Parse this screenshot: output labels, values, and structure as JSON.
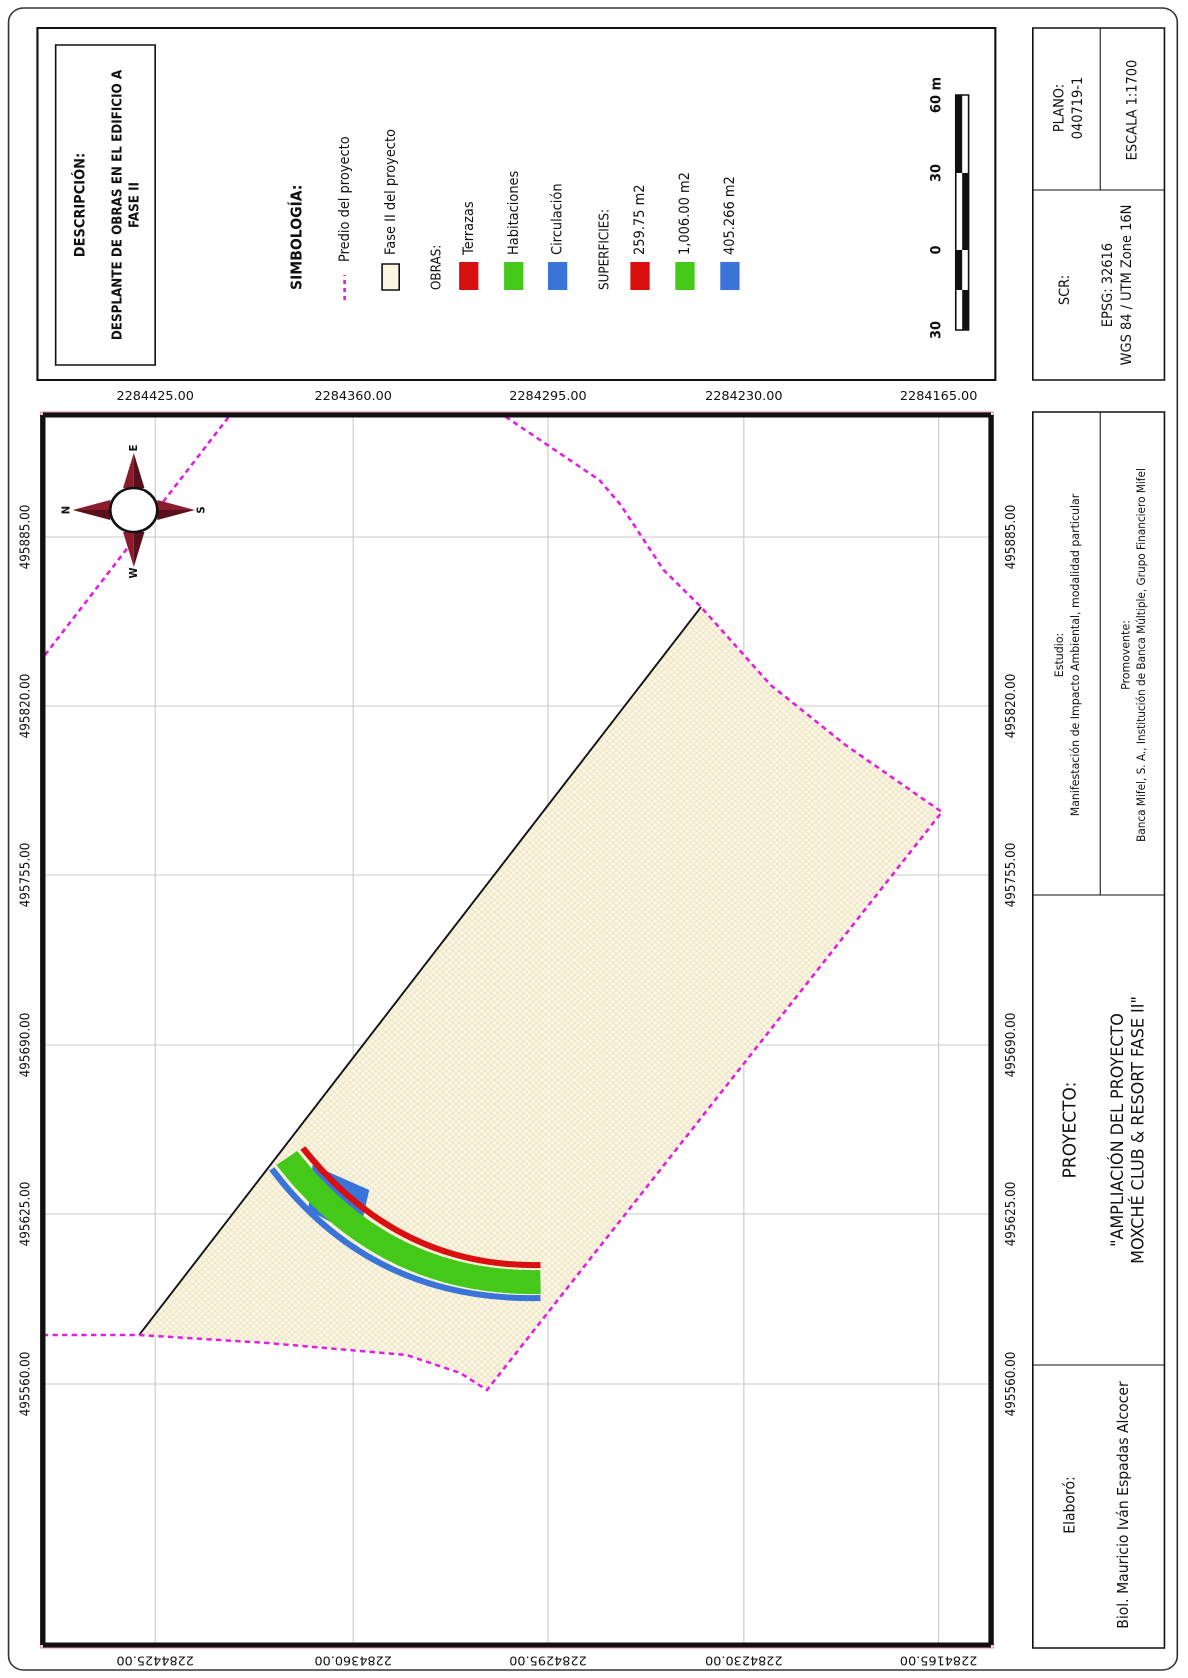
{
  "description": {
    "heading": "DESCRIPCIÓN:",
    "lines": [
      "DESPLANTE DE OBRAS EN EL EDIFICIO A",
      "FASE II"
    ]
  },
  "legend": {
    "title": "SIMBOLOGÍA:",
    "predio": "Predio del proyecto",
    "fase": "Fase II del proyecto",
    "obras_label": "OBRAS:",
    "obras": [
      "Terrazas",
      "Habitaciones",
      "Circulación"
    ],
    "superficies_label": "SUPERFICIES:",
    "superficies": [
      "259.75  m2",
      "1,006.00 m2",
      "405.266 m2"
    ]
  },
  "scale_bar": {
    "labels": [
      "30",
      "0",
      "30",
      "60 m"
    ]
  },
  "scr": {
    "label": "SCR:",
    "epsg": "EPSG: 32616",
    "datum": "WGS 84 / UTM Zone 16N"
  },
  "plano": {
    "label": "PLANO:",
    "number": "040719-1"
  },
  "escala": "ESCALA   1:1700",
  "grid": {
    "northing": [
      "2284425.00",
      "2284360.00",
      "2284295.00",
      "2284230.00",
      "2284165.00"
    ],
    "easting": [
      "495885.00",
      "495820.00",
      "495755.00",
      "495690.00",
      "495625.00",
      "495560.00"
    ]
  },
  "compass": {
    "n": "N",
    "e": "E",
    "s": "S",
    "w": "W"
  },
  "title_block": {
    "elaboro_label": "Elaboró:",
    "elaboro": "Biol. Mauricio Iván Espadas Alcocer",
    "proyecto_label": "PROYECTO:",
    "proyecto": [
      "\"AMPLIACIÓN DEL PROYECTO",
      "MOXCHÉ CLUB & RESORT FASE II\""
    ],
    "estudio_label": "Estudio:",
    "estudio": "Manifestación de Impacto Ambiental, modalidad particular",
    "promovente_label": "Promovente:",
    "promovente": "Banca Mifel, S. A., Institución de Banca Múltiple, Grupo Financiero Mifel"
  }
}
